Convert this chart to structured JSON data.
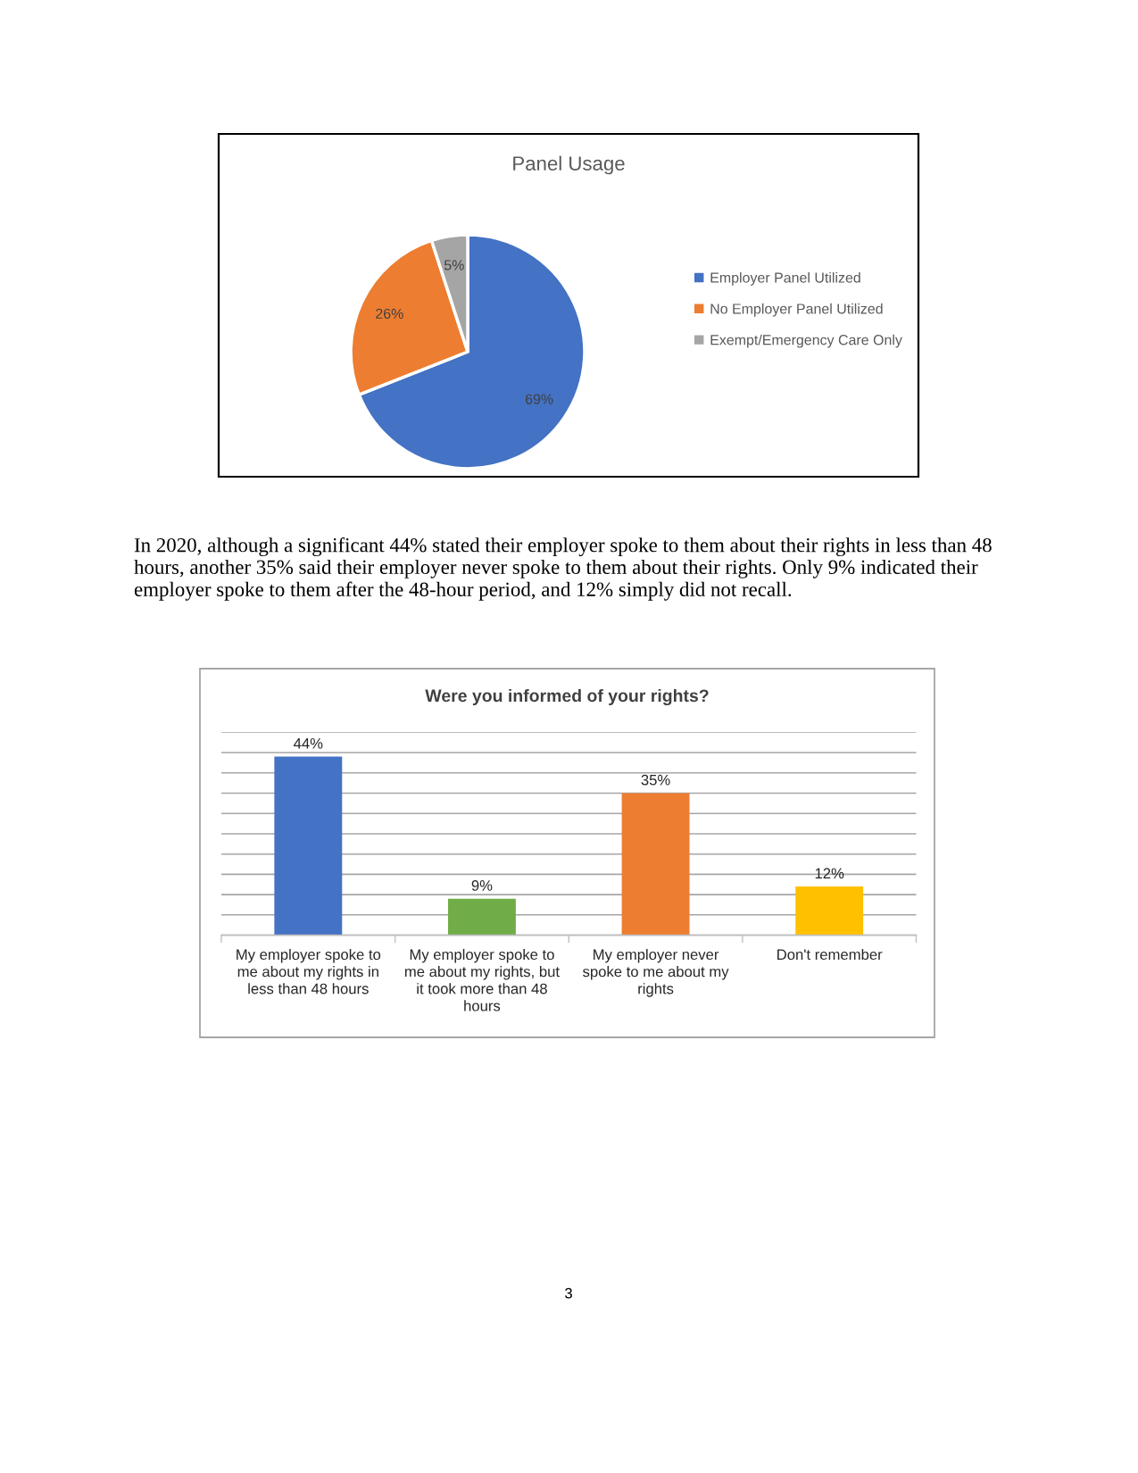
{
  "chart_data": [
    {
      "type": "pie",
      "title": "Panel Usage",
      "categories": [
        "Employer Panel Utilized",
        "No Employer Panel Utilized",
        "Exempt/Emergency Care Only"
      ],
      "values": [
        69,
        26,
        5
      ],
      "colors": [
        "#4472c4",
        "#ed7d31",
        "#a5a5a5"
      ],
      "value_labels": [
        "69%",
        "26%",
        "5%"
      ],
      "legend": "right"
    },
    {
      "type": "bar",
      "title": "Were you informed of your rights?",
      "categories": [
        "My employer spoke to\nme about my rights in\nless than 48 hours",
        "My employer spoke to\nme about my rights, but\nit took more than 48\nhours",
        "My employer never\nspoke to me about my\nrights",
        "Don't remember"
      ],
      "values": [
        44,
        9,
        35,
        12
      ],
      "colors": [
        "#4472c4",
        "#70ad47",
        "#ed7d31",
        "#ffc000"
      ],
      "value_labels": [
        "44%",
        "9%",
        "35%",
        "12%"
      ],
      "ylim": [
        0,
        50
      ],
      "yticks": [
        {
          "value": 0,
          "label": null
        },
        {
          "value": 5,
          "label": null
        },
        {
          "value": 10,
          "label": null
        },
        {
          "value": 15,
          "label": null
        },
        {
          "value": 20,
          "label": null
        },
        {
          "value": 25,
          "label": null
        },
        {
          "value": 30,
          "label": null
        },
        {
          "value": 35,
          "label": null
        },
        {
          "value": 40,
          "label": null
        },
        {
          "value": 45,
          "label": null
        },
        {
          "value": 50,
          "label": null
        }
      ],
      "grid": "y",
      "tick_labels": "x",
      "annotations": [
        "In 2020, although a significant 44% stated their employer spoke to them about their rights in less than 48\nhours, another 35% said their employer never spoke to them about their rights. Only 9% indicated their\nemployer spoke to them after the 48-hour period, and 12% simply did not recall.",
        "3"
      ]
    }
  ]
}
